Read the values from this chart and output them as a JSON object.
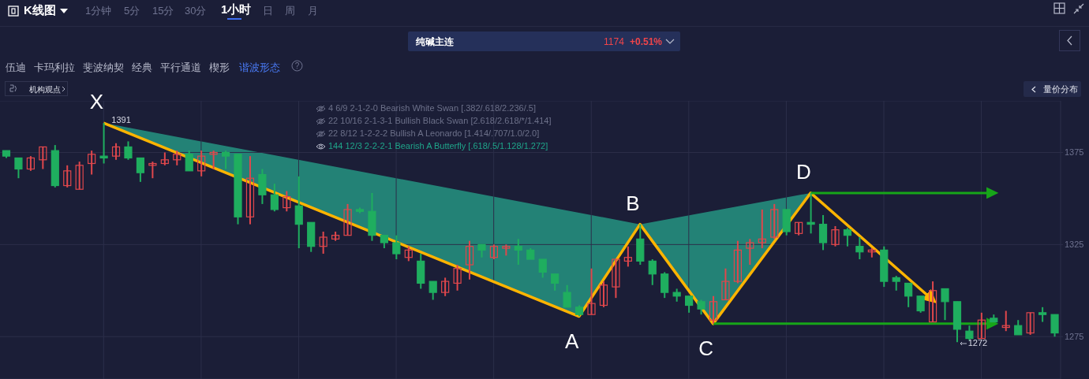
{
  "chart_data": {
    "type": "candlestick",
    "title": "纯碱主连",
    "categories": [
      null,
      null,
      null,
      null,
      null,
      null,
      null,
      null,
      null,
      null,
      null,
      null,
      null,
      null,
      null,
      null,
      null,
      null,
      null,
      null,
      null,
      null,
      null,
      null,
      null,
      null,
      null,
      null,
      null,
      null,
      null,
      null,
      null,
      null,
      null,
      null,
      null,
      null,
      null,
      null,
      null,
      null,
      null,
      null,
      null,
      null,
      null,
      null,
      null,
      null,
      null,
      null,
      null,
      null,
      null,
      null,
      null,
      null,
      null,
      null,
      null,
      null,
      null,
      null,
      null,
      null,
      null,
      null,
      null,
      null,
      null,
      null,
      null,
      null,
      null,
      null,
      null,
      null,
      null,
      null,
      null,
      null,
      null,
      null,
      null,
      null,
      null
    ],
    "ohlc": [
      [
        1376,
        1376,
        1372,
        1373
      ],
      [
        1372,
        1372,
        1361,
        1366
      ],
      [
        1366,
        1373,
        1365,
        1372
      ],
      [
        1371,
        1378,
        1366,
        1378
      ],
      [
        1376,
        1379,
        1356,
        1357
      ],
      [
        1357,
        1368,
        1356,
        1365
      ],
      [
        1355,
        1370,
        1355,
        1368
      ],
      [
        1369,
        1376,
        1363,
        1374
      ],
      [
        1373,
        1391,
        1369,
        1372
      ],
      [
        1373,
        1380,
        1371,
        1378
      ],
      [
        1378,
        1381,
        1371,
        1372
      ],
      [
        1372,
        1372,
        1359,
        1364
      ],
      [
        1368,
        1370,
        1361,
        1369
      ],
      [
        1369,
        1375,
        1368,
        1371
      ],
      [
        1371,
        1376,
        1368,
        1374
      ],
      [
        1374,
        1376,
        1365,
        1365
      ],
      [
        1365,
        1376,
        1362,
        1373
      ],
      [
        1374,
        1376,
        1366,
        1375
      ],
      [
        1375,
        1376,
        1366,
        1373
      ],
      [
        1374,
        1374,
        1336,
        1340
      ],
      [
        1340,
        1373,
        1336,
        1361
      ],
      [
        1363,
        1366,
        1347,
        1352
      ],
      [
        1352,
        1358,
        1343,
        1344
      ],
      [
        1345,
        1354,
        1343,
        1351
      ],
      [
        1346,
        1362,
        1323,
        1336
      ],
      [
        1337,
        1337,
        1321,
        1324
      ],
      [
        1324,
        1332,
        1320,
        1329
      ],
      [
        1328,
        1332,
        1327,
        1330
      ],
      [
        1330,
        1347,
        1330,
        1344
      ],
      [
        1344,
        1345,
        1342,
        1343
      ],
      [
        1343,
        1353,
        1327,
        1330
      ],
      [
        1330,
        1330,
        1323,
        1326
      ],
      [
        1326,
        1330,
        1317,
        1320
      ],
      [
        1318,
        1324,
        1316,
        1322
      ],
      [
        1316,
        1320,
        1301,
        1304
      ],
      [
        1305,
        1305,
        1295,
        1299
      ],
      [
        1299,
        1307,
        1297,
        1305
      ],
      [
        1304,
        1314,
        1300,
        1312
      ],
      [
        1314,
        1327,
        1306,
        1324
      ],
      [
        1325,
        1325,
        1318,
        1322
      ],
      [
        1318,
        1325,
        1317,
        1324
      ],
      [
        1323,
        1325,
        1319,
        1324
      ],
      [
        1324,
        1328,
        1314,
        1322
      ],
      [
        1322,
        1323,
        1317,
        1317
      ],
      [
        1317,
        1317,
        1307,
        1310
      ],
      [
        1309,
        1309,
        1300,
        1304
      ],
      [
        1299,
        1303,
        1291,
        1291
      ],
      [
        1291,
        1292,
        1286,
        1287
      ],
      [
        1287,
        1312,
        1287,
        1293
      ],
      [
        1292,
        1305,
        1291,
        1303
      ],
      [
        1302,
        1317,
        1296,
        1317
      ],
      [
        1316,
        1324,
        1313,
        1318
      ],
      [
        1328,
        1336,
        1314,
        1316
      ],
      [
        1316,
        1317,
        1303,
        1309
      ],
      [
        1309,
        1310,
        1296,
        1299
      ],
      [
        1299,
        1301,
        1294,
        1297
      ],
      [
        1297,
        1297,
        1288,
        1292
      ],
      [
        1294,
        1295,
        1287,
        1290
      ],
      [
        1284,
        1297,
        1282,
        1294
      ],
      [
        1295,
        1312,
        1295,
        1305
      ],
      [
        1305,
        1327,
        1304,
        1322
      ],
      [
        1323,
        1328,
        1314,
        1326
      ],
      [
        1326,
        1344,
        1323,
        1328
      ],
      [
        1329,
        1347,
        1328,
        1344
      ],
      [
        1344,
        1344,
        1330,
        1332
      ],
      [
        1331,
        1337,
        1330,
        1337
      ],
      [
        1337,
        1353,
        1331,
        1336
      ],
      [
        1336,
        1341,
        1322,
        1326
      ],
      [
        1325,
        1335,
        1324,
        1333
      ],
      [
        1333,
        1334,
        1324,
        1330
      ],
      [
        1324,
        1329,
        1317,
        1321
      ],
      [
        1321,
        1323,
        1318,
        1322
      ],
      [
        1322,
        1324,
        1302,
        1305
      ],
      [
        1307,
        1308,
        1300,
        1305
      ],
      [
        1304,
        1304,
        1291,
        1297
      ],
      [
        1297,
        1297,
        1288,
        1289
      ],
      [
        1283,
        1305,
        1283,
        1300
      ],
      [
        1301,
        1301,
        1284,
        1294
      ],
      [
        1294,
        1294,
        1272,
        1279
      ],
      [
        1278,
        1281,
        1273,
        1274
      ],
      [
        1274,
        1288,
        1274,
        1284
      ],
      [
        1285,
        1287,
        1283,
        1283
      ],
      [
        1280,
        1289,
        1278,
        1281
      ],
      [
        1281,
        1284,
        1276,
        1276
      ],
      [
        1277,
        1288,
        1276,
        1288
      ],
      [
        1288,
        1291,
        1283,
        1287
      ],
      [
        1287,
        1287,
        1275,
        1277
      ]
    ],
    "colors": [
      "#1fae5f",
      "#1fae5f",
      "#e0474c",
      "#e0474c",
      "#1fae5f",
      "#e0474c",
      "#e0474c",
      "#e0474c",
      "#1fae5f",
      "#e0474c",
      "#1fae5f",
      "#1fae5f",
      "#e0474c",
      "#e0474c",
      "#e0474c",
      "#1fae5f",
      "#e0474c",
      "#e0474c",
      "#1fae5f",
      "#1fae5f",
      "#e0474c",
      "#1fae5f",
      "#1fae5f",
      "#e0474c",
      "#1fae5f",
      "#1fae5f",
      "#e0474c",
      "#e0474c",
      "#e0474c",
      "#1fae5f",
      "#1fae5f",
      "#1fae5f",
      "#1fae5f",
      "#e0474c",
      "#1fae5f",
      "#1fae5f",
      "#e0474c",
      "#e0474c",
      "#e0474c",
      "#1fae5f",
      "#e0474c",
      "#e0474c",
      "#1fae5f",
      "#1fae5f",
      "#1fae5f",
      "#1fae5f",
      "#1fae5f",
      "#1fae5f",
      "#e0474c",
      "#e0474c",
      "#e0474c",
      "#e0474c",
      "#1fae5f",
      "#1fae5f",
      "#1fae5f",
      "#1fae5f",
      "#1fae5f",
      "#1fae5f",
      "#e0474c",
      "#e0474c",
      "#e0474c",
      "#e0474c",
      "#e0474c",
      "#e0474c",
      "#1fae5f",
      "#e0474c",
      "#1fae5f",
      "#1fae5f",
      "#e0474c",
      "#1fae5f",
      "#1fae5f",
      "#e0474c",
      "#1fae5f",
      "#1fae5f",
      "#1fae5f",
      "#1fae5f",
      "#e0474c",
      "#1fae5f",
      "#1fae5f",
      "#1fae5f",
      "#e0474c",
      "#1fae5f",
      "#e0474c",
      "#1fae5f",
      "#e0474c",
      "#1fae5f",
      "#1fae5f"
    ],
    "series": [
      {
        "type": "line",
        "color": "#ffb400",
        "values": [
          null,
          null,
          null,
          null,
          null,
          null,
          null,
          null,
          1391,
          null,
          null,
          null,
          null,
          null,
          null,
          null,
          null,
          null,
          null,
          null,
          null,
          null,
          null,
          null,
          null,
          null,
          null,
          null,
          null,
          null,
          null,
          null,
          null,
          null,
          null,
          null,
          null,
          null,
          null,
          null,
          null,
          null,
          null,
          null,
          null,
          null,
          null,
          1286,
          null,
          null,
          null,
          null,
          1336,
          null,
          null,
          null,
          null,
          null,
          1282,
          null,
          null,
          null,
          null,
          null,
          null,
          null,
          1353,
          null,
          null,
          null,
          null,
          null,
          null,
          null,
          null,
          null,
          1295,
          null,
          null,
          null,
          null,
          null,
          null,
          null,
          null,
          null,
          null
        ]
      }
    ],
    "ylim": [
      1252,
      1403
    ],
    "yticks": [
      1275,
      1325,
      1375
    ],
    "grid": true,
    "tick_labels": "y",
    "ref_lines": [
      {
        "axis": "y",
        "value": 1353,
        "color": "#17a619"
      },
      {
        "axis": "y",
        "value": 1282,
        "color": "#17a619"
      }
    ],
    "annotations": [
      "K线图",
      "1分钟",
      "5分",
      "15分",
      "30分",
      "1小时",
      "日",
      "周",
      "月",
      "1174",
      "+0.51%",
      "伍迪",
      "卡玛利拉",
      "斐波纳契",
      "经典",
      "平行通道",
      "楔形",
      "谐波形态",
      "机构观点",
      "量价分布",
      "4 6/9 2-1-2-0 Bearish White Swan [.382/.618/2.236/.5]",
      "22 10/16 2-1-3-1 Bullish Black Swan [2.618/2.618/*/1.414]",
      "22 8/12 1-2-2-2 Bullish A Leonardo [1.414/.707/1.0/2.0]",
      "144 12/3 2-2-2-1 Bearish A Butterfly [.618/.5/1.128/1.272]",
      "?",
      "1391",
      "X",
      "A",
      "B",
      "C",
      "D",
      {
        "text": "1272",
        "y": 1272
      }
    ]
  }
}
